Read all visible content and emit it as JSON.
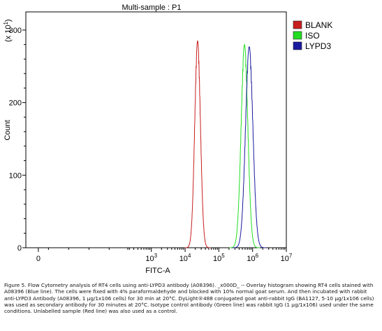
{
  "chart_data": {
    "type": "line",
    "title": "Multi-sample : P1",
    "xlabel": "FITC-A",
    "ylabel": "Count",
    "y_multiplier": "(x 10",
    "y_multiplier_exp": "1",
    "y_multiplier_close": ")",
    "x_scale": "log (biexponential)",
    "xlim": [
      0,
      10000000
    ],
    "ylim": [
      0,
      325
    ],
    "grid": false,
    "legend_position": "top-right",
    "x_ticks": [
      {
        "base": "0",
        "exp": "",
        "log10": -0.35
      },
      {
        "base": "10",
        "exp": "3",
        "log10": 3
      },
      {
        "base": "10",
        "exp": "4",
        "log10": 4
      },
      {
        "base": "10",
        "exp": "5",
        "log10": 5
      },
      {
        "base": "10",
        "exp": "6",
        "log10": 6
      },
      {
        "base": "10",
        "exp": "7",
        "log10": 7
      }
    ],
    "y_ticks": [
      0,
      100,
      200,
      300
    ],
    "series": [
      {
        "name": "BLANK",
        "color": "#c81e1e",
        "peak_log10": 4.37,
        "peak_count": 285,
        "sigma": 0.085
      },
      {
        "name": "ISO",
        "color": "#22dd22",
        "peak_log10": 5.76,
        "peak_count": 280,
        "sigma": 0.1
      },
      {
        "name": "LYPD3",
        "color": "#1a1aa0",
        "peak_log10": 5.9,
        "peak_count": 277,
        "sigma": 0.11
      }
    ]
  },
  "caption": "Figure 5. Flow Cytometry analysis of RT4 cells using anti-LYPD3 antibody (A08396). _x000D_ -- Overlay histogram showing RT4 cells stained with A08396 (Blue line). The cells were fixed with 4% paraformaldehyde and blocked with 10% normal goat serum. And then incubated with rabbit anti-LYPD3 Antibody (A08396, 1 µg/1x106 cells) for 30 min at 20°C. DyLight®488 conjugated goat anti-rabbit IgG (BA1127, 5-10 µg/1x106 cells) was used as secondary antibody for 30 minutes at 20°C. Isotype control antibody (Green line) was rabbit IgG (1 µg/1x106) used under the same conditions. Unlabelled sample (Red line) was also used as a control."
}
